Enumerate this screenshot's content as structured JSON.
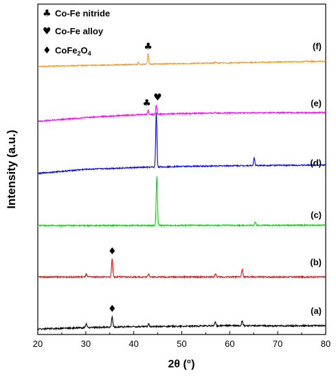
{
  "chart_data": {
    "type": "line",
    "xlabel": "2θ (°)",
    "ylabel": "Intensity (a.u.)",
    "xlim": [
      20,
      80
    ],
    "x_ticks": [
      "20",
      "30",
      "40",
      "50",
      "60",
      "70",
      "80"
    ],
    "legend": [
      {
        "symbol": "♣",
        "label": "Co-Fe nitride",
        "icon": "club-icon"
      },
      {
        "symbol": "♥",
        "label": "Co-Fe alloy",
        "icon": "heart-icon"
      },
      {
        "symbol": "♦",
        "label": "CoFe2O4",
        "label_parts": [
          "CoFe",
          "2",
          "O",
          "4"
        ],
        "icon": "diamond-icon"
      }
    ],
    "series": [
      {
        "name": "(f)",
        "color": "#F5962A",
        "baseline": {
          "x": [
            20,
            30,
            40,
            50,
            60,
            70,
            80
          ],
          "y": [
            0.0,
            1.6,
            2.9,
            4.2,
            5.3,
            6.6,
            7.5
          ]
        },
        "peaks": [
          {
            "x": 41.0,
            "h": 3.0
          },
          {
            "x": 43.0,
            "h": 15.0
          },
          {
            "x": 57.0,
            "h": 2.0
          },
          {
            "x": 76.0,
            "h": 2.0
          }
        ],
        "noise": 0.8
      },
      {
        "name": "(e)",
        "color": "#FF00FF",
        "baseline": {
          "x": [
            20,
            30,
            40,
            50,
            60,
            70,
            80
          ],
          "y": [
            0.0,
            5.5,
            9.5,
            11.5,
            12.3,
            12.6,
            12.8
          ]
        },
        "peaks": [
          {
            "x": 43.0,
            "h": 6.0
          },
          {
            "x": 44.7,
            "h": 14.0
          },
          {
            "x": 57.0,
            "h": 1.5
          }
        ],
        "noise": 0.9
      },
      {
        "name": "(d)",
        "color": "#0000FF",
        "baseline": {
          "x": [
            20,
            30,
            40,
            50,
            60,
            70,
            80
          ],
          "y": [
            0.0,
            6.0,
            8.5,
            10.2,
            11.2,
            11.8,
            12.2
          ]
        },
        "peaks": [
          {
            "x": 44.7,
            "h": 81.0
          },
          {
            "x": 65.1,
            "h": 11.0
          }
        ],
        "noise": 0.9
      },
      {
        "name": "(c)",
        "color": "#00DD00",
        "baseline": {
          "x": [
            20,
            30,
            40,
            50,
            60,
            70,
            80
          ],
          "y": [
            0.0,
            0.0,
            0.0,
            0.2,
            0.3,
            0.4,
            0.5
          ]
        },
        "peaks": [
          {
            "x": 44.8,
            "h": 72.0
          },
          {
            "x": 65.3,
            "h": 5.0
          }
        ],
        "noise": 0.9
      },
      {
        "name": "(b)",
        "color": "#FF0000",
        "baseline": {
          "x": [
            20,
            30,
            40,
            50,
            60,
            70,
            80
          ],
          "y": [
            0.0,
            0.0,
            0.0,
            0.0,
            0.0,
            0.0,
            0.0
          ]
        },
        "peaks": [
          {
            "x": 30.1,
            "h": 4.0
          },
          {
            "x": 35.5,
            "h": 27.0
          },
          {
            "x": 43.1,
            "h": 5.0
          },
          {
            "x": 57.0,
            "h": 5.0
          },
          {
            "x": 62.6,
            "h": 11.0
          }
        ],
        "noise": 0.9
      },
      {
        "name": "(a)",
        "color": "#000000",
        "baseline": {
          "x": [
            20,
            30,
            40,
            50,
            60,
            70,
            80
          ],
          "y": [
            0.0,
            2.0,
            3.5,
            4.0,
            5.0,
            4.5,
            5.0
          ]
        },
        "peaks": [
          {
            "x": 30.1,
            "h": 6.0
          },
          {
            "x": 35.5,
            "h": 16.0
          },
          {
            "x": 43.1,
            "h": 4.0
          },
          {
            "x": 57.0,
            "h": 6.0
          },
          {
            "x": 62.6,
            "h": 8.0
          }
        ],
        "noise": 1.1
      }
    ],
    "annotations": [
      {
        "series": "(f)",
        "x": 43.0,
        "symbol": "♣",
        "icon": "club-icon"
      },
      {
        "series": "(e)",
        "x": 43.0,
        "symbol": "♣",
        "icon": "club-icon"
      },
      {
        "series": "(e)",
        "x": 44.7,
        "symbol": "♥",
        "icon": "heart-icon"
      },
      {
        "series": "(b)",
        "x": 35.5,
        "symbol": "♦",
        "icon": "diamond-icon"
      },
      {
        "series": "(a)",
        "x": 35.5,
        "symbol": "♦",
        "icon": "diamond-icon"
      }
    ]
  }
}
